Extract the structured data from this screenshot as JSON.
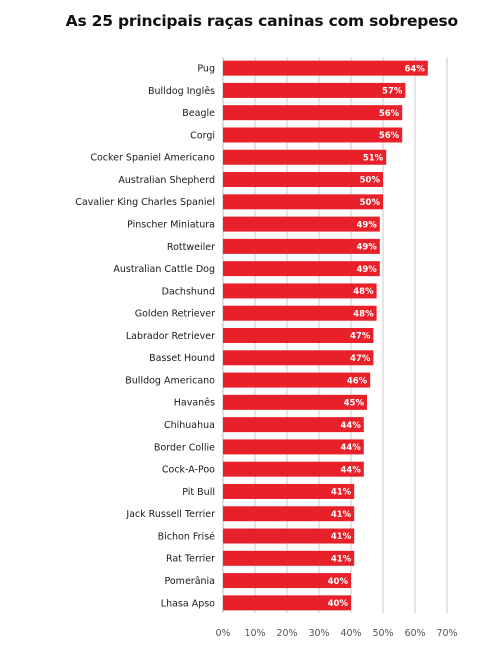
{
  "chart_data": {
    "type": "bar",
    "orientation": "horizontal",
    "title": "As 25 principais raças caninas com sobrepeso",
    "categories": [
      "Pug",
      "Bulldog Inglês",
      "Beagle",
      "Corgi",
      "Cocker Spaniel Americano",
      "Australian Shepherd",
      "Cavalier King Charles Spaniel",
      "Pinscher Miniatura",
      "Rottweiler",
      "Australian Cattle Dog",
      "Dachshund",
      "Golden Retriever",
      "Labrador Retriever",
      "Basset Hound",
      "Bulldog Americano",
      "Havanês",
      "Chihuahua",
      "Border Collie",
      "Cock-A-Poo",
      "Pit Bull",
      "Jack Russell Terrier",
      "Bichon Frisé",
      "Rat Terrier",
      "Pomerânia",
      "Lhasa Apso"
    ],
    "values": [
      64,
      57,
      56,
      56,
      51,
      50,
      50,
      49,
      49,
      49,
      48,
      48,
      47,
      47,
      46,
      45,
      44,
      44,
      44,
      41,
      41,
      41,
      41,
      40,
      40
    ],
    "value_labels": [
      "64%",
      "57%",
      "56%",
      "56%",
      "51%",
      "50%",
      "50%",
      "49%",
      "49%",
      "49%",
      "48%",
      "48%",
      "47%",
      "47%",
      "46%",
      "45%",
      "44%",
      "44%",
      "44%",
      "41%",
      "41%",
      "41%",
      "41%",
      "40%",
      "40%"
    ],
    "xticks": [
      "0%",
      "10%",
      "20%",
      "30%",
      "40%",
      "50%",
      "60%",
      "70%"
    ],
    "xlim": [
      0,
      70
    ],
    "grid": true,
    "bar_color": "#e8202a",
    "grid_color": "#c8c8c8"
  }
}
